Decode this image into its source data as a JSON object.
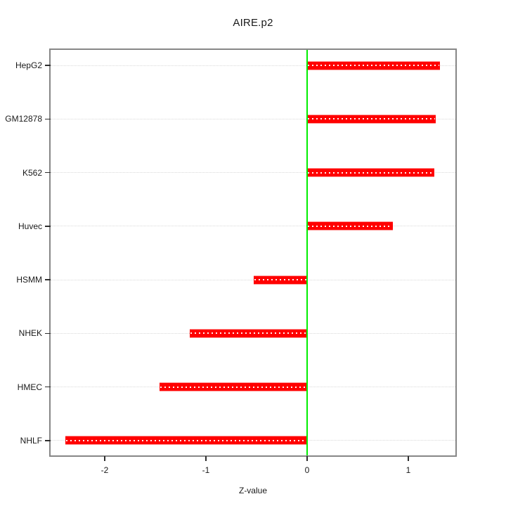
{
  "chart_data": {
    "type": "bar",
    "orientation": "horizontal",
    "title": "AIRE.p2",
    "xlabel": "Z-value",
    "ylabel": "",
    "categories": [
      "HepG2",
      "GM12878",
      "K562",
      "Huvec",
      "HSMM",
      "NHEK",
      "HMEC",
      "NHLF"
    ],
    "values": [
      1.31,
      1.27,
      1.26,
      0.85,
      -0.53,
      -1.16,
      -1.46,
      -2.39
    ],
    "x_tick_labels": [
      "-2",
      "-1",
      "0",
      "1"
    ],
    "x_tick_values": [
      -2,
      -1,
      0,
      1
    ],
    "xlim": [
      -2.53,
      1.47
    ],
    "grid": "horizontal-dotted",
    "legend": "none",
    "zero_reference_line": 0,
    "colors": {
      "bar": "#ff0000",
      "zero_line": "#00ee00",
      "grid": "#d9d9d9",
      "frame": "#878787",
      "tick": "#2e2e2e",
      "text": "#1a1a1a"
    }
  }
}
